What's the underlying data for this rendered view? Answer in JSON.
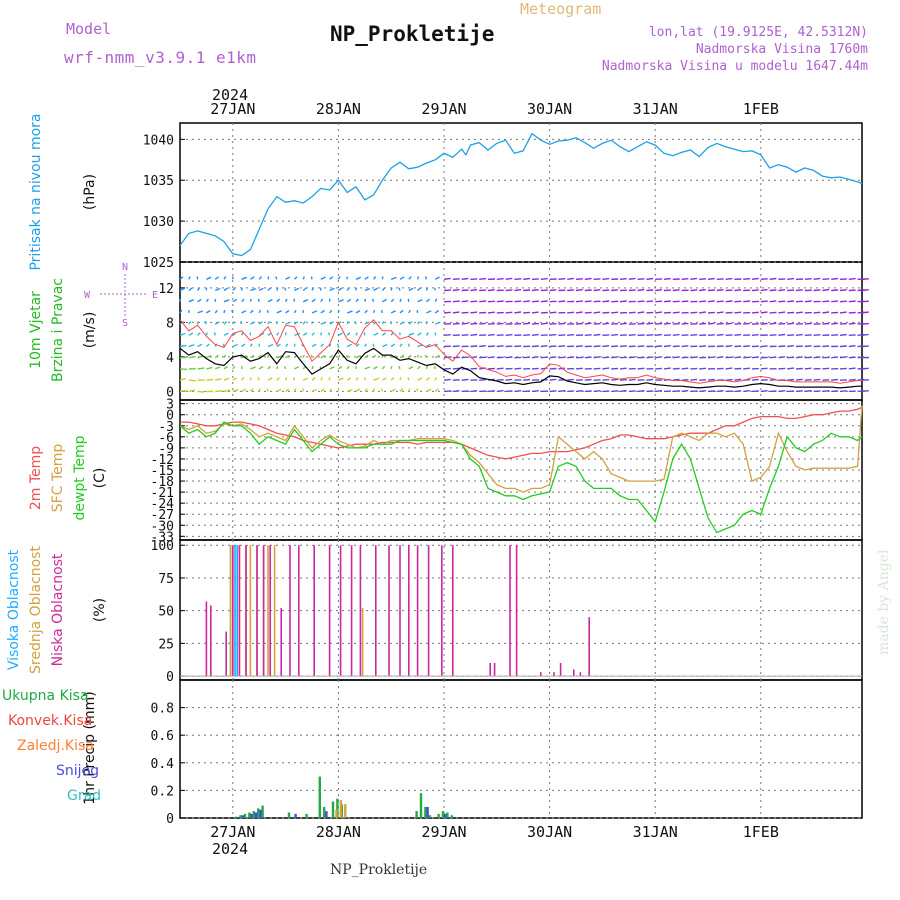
{
  "header": {
    "model_label": "Model",
    "model_name": "wrf-nmm_v3.9.1 e1km",
    "title": "NP_Prokletije",
    "meteogram_label": "Meteogram",
    "lonlat": "lon,lat (19.9125E, 42.5312N)",
    "elevation": "Nadmorska Visina 1760m",
    "model_elevation": "Nadmorska Visina u modelu 1647.44m"
  },
  "footer": {
    "station": "NP_Prokletije",
    "credit": "made by Angel"
  },
  "time_axis": {
    "labels": [
      "27JAN",
      "28JAN",
      "29JAN",
      "30JAN",
      "31JAN",
      "1FEB"
    ],
    "year": "2024",
    "range_hours": [
      -12,
      143
    ]
  },
  "colors": {
    "pressure": "#1ea0e8",
    "temp2m": "#f05050",
    "sfc": "#d4a040",
    "dewpt": "#22cc22",
    "high_cloud": "#22aaff",
    "mid_cloud": "#d4a040",
    "low_cloud": "#cc2a9c",
    "total_precip": "#22aa44",
    "conv_precip": "#ee4444",
    "frozen": "#ff8030",
    "snow": "#4a4ae0",
    "graupel": "#33c0c0"
  },
  "chart_data": [
    {
      "type": "line",
      "panel": "pressure",
      "ylabel": [
        "Pritisak na nivou mora",
        "(hPa)"
      ],
      "ylim": [
        1025,
        1042
      ],
      "yticks": [
        1025,
        1030,
        1035,
        1040
      ],
      "grid": true,
      "series": [
        {
          "x": [
            -12,
            -10,
            -8,
            -6,
            -4,
            -2,
            0,
            2,
            4,
            6,
            8,
            10,
            12,
            14,
            16,
            18,
            20,
            22,
            24,
            26,
            28,
            30,
            32,
            34,
            36,
            38,
            40,
            42,
            44,
            46,
            48,
            50,
            52,
            53,
            54,
            56,
            58,
            60,
            62,
            64,
            66,
            68,
            70,
            72,
            74,
            76,
            78,
            80,
            82,
            84,
            86,
            88,
            90,
            92,
            94,
            96,
            98,
            100,
            102,
            104,
            106,
            108,
            110,
            112,
            114,
            116,
            118,
            120,
            122,
            124,
            126,
            128,
            130,
            132,
            134,
            136,
            138,
            140,
            142,
            143
          ],
          "y": [
            1027.0,
            1028.5,
            1028.8,
            1028.5,
            1028.2,
            1027.5,
            1026.0,
            1025.8,
            1026.5,
            1029.0,
            1031.5,
            1033.0,
            1032.3,
            1032.5,
            1032.2,
            1033.0,
            1034.0,
            1033.8,
            1035.0,
            1033.5,
            1034.2,
            1032.6,
            1033.2,
            1035.0,
            1036.5,
            1037.2,
            1036.4,
            1036.6,
            1037.1,
            1037.5,
            1038.3,
            1037.8,
            1038.8,
            1038.1,
            1039.3,
            1039.6,
            1038.7,
            1039.5,
            1039.9,
            1038.3,
            1038.6,
            1040.7,
            1039.9,
            1039.4,
            1039.8,
            1039.9,
            1040.2,
            1039.6,
            1038.9,
            1039.5,
            1039.9,
            1039.1,
            1038.5,
            1039.1,
            1039.7,
            1039.3,
            1038.3,
            1038.0,
            1038.4,
            1038.7,
            1037.9,
            1039.0,
            1039.5,
            1039.1,
            1038.8,
            1038.5,
            1038.6,
            1038.1,
            1036.5,
            1036.9,
            1036.6,
            1036.0,
            1036.5,
            1036.2,
            1035.5,
            1035.3,
            1035.4,
            1035.1,
            1034.8,
            1034.6
          ]
        }
      ]
    },
    {
      "type": "line",
      "panel": "wind",
      "ylabel": [
        "10m Vjetar",
        "Brzina i Pravac",
        "(m/s)"
      ],
      "ylim": [
        -1,
        15
      ],
      "yticks": [
        0,
        4,
        8,
        12
      ],
      "compass": [
        "N",
        "E",
        "W",
        "S"
      ],
      "grid": true,
      "series": [
        {
          "name": "speed",
          "x": [
            -12,
            -10,
            -8,
            -6,
            -4,
            -2,
            0,
            2,
            4,
            6,
            8,
            10,
            12,
            14,
            16,
            18,
            20,
            22,
            24,
            26,
            28,
            30,
            32,
            34,
            36,
            38,
            40,
            42,
            44,
            46,
            48,
            50,
            52,
            54,
            56,
            58,
            60,
            62,
            64,
            66,
            68,
            70,
            72,
            74,
            76,
            78,
            80,
            82,
            84,
            86,
            88,
            90,
            92,
            94,
            96,
            98,
            100,
            102,
            104,
            106,
            108,
            110,
            112,
            114,
            116,
            118,
            120,
            122,
            124,
            126,
            128,
            130,
            132,
            134,
            136,
            138,
            140,
            142,
            143
          ],
          "y": [
            5.0,
            4.2,
            4.6,
            3.8,
            3.2,
            3.0,
            4.0,
            4.2,
            3.5,
            3.8,
            4.5,
            3.2,
            4.6,
            4.5,
            3.2,
            2.0,
            2.6,
            3.2,
            4.8,
            3.6,
            3.2,
            4.4,
            5.0,
            4.2,
            4.2,
            3.6,
            3.8,
            3.4,
            3.0,
            3.2,
            2.5,
            2.0,
            2.8,
            2.4,
            1.6,
            1.4,
            1.2,
            0.9,
            1.0,
            0.8,
            1.0,
            1.1,
            1.8,
            1.7,
            1.2,
            1.0,
            0.8,
            0.9,
            1.0,
            0.8,
            0.7,
            0.8,
            0.8,
            1.0,
            0.8,
            0.7,
            0.6,
            0.6,
            0.5,
            0.4,
            0.5,
            0.6,
            0.6,
            0.5,
            0.6,
            0.8,
            0.9,
            0.8,
            0.6,
            0.6,
            0.5,
            0.5,
            0.5,
            0.5,
            0.5,
            0.4,
            0.5,
            0.6,
            0.6
          ]
        }
      ]
    },
    {
      "type": "line",
      "panel": "temperature",
      "ylabel": [
        "2m Temp",
        "SFC Temp",
        "dewpt Temp",
        "(C)"
      ],
      "ylim": [
        -34,
        4
      ],
      "yticks": [
        3,
        0,
        -3,
        -6,
        -9,
        -12,
        -15,
        -18,
        -21,
        -24,
        -27,
        -30,
        -33
      ],
      "grid": true,
      "x": [
        -12,
        -10,
        -8,
        -6,
        -4,
        -2,
        0,
        2,
        4,
        6,
        8,
        10,
        12,
        14,
        16,
        18,
        20,
        22,
        24,
        26,
        28,
        30,
        32,
        34,
        36,
        38,
        40,
        42,
        44,
        46,
        48,
        50,
        52,
        54,
        56,
        58,
        60,
        62,
        64,
        66,
        68,
        70,
        72,
        74,
        76,
        78,
        80,
        82,
        84,
        86,
        88,
        90,
        92,
        94,
        96,
        98,
        100,
        102,
        104,
        106,
        108,
        110,
        112,
        114,
        116,
        118,
        120,
        122,
        124,
        126,
        128,
        130,
        132,
        134,
        136,
        138,
        140,
        142,
        143
      ],
      "series": [
        {
          "name": "2m Temp",
          "y": [
            -2,
            -2,
            -2.5,
            -3,
            -3,
            -2.5,
            -2,
            -2,
            -2.5,
            -3,
            -4,
            -5,
            -5.5,
            -6,
            -7,
            -7.5,
            -8,
            -8.5,
            -9,
            -8.5,
            -8,
            -8,
            -8,
            -7.5,
            -7.5,
            -7.5,
            -7.5,
            -8,
            -7.5,
            -7.5,
            -7.5,
            -7.5,
            -8,
            -9,
            -10,
            -11,
            -11.5,
            -12,
            -11.5,
            -11,
            -10.5,
            -10.5,
            -10,
            -10,
            -10,
            -9.5,
            -9,
            -8,
            -7,
            -6.5,
            -5.5,
            -5.5,
            -6,
            -6.5,
            -6.5,
            -6.5,
            -6,
            -5.5,
            -5,
            -5,
            -5,
            -4,
            -3,
            -3,
            -2,
            -1,
            -0.5,
            -0.5,
            -0.5,
            -1,
            -1,
            -0.5,
            0,
            0,
            0.5,
            1,
            1,
            1.5,
            2
          ]
        },
        {
          "name": "SFC Temp",
          "y": [
            -3,
            -4,
            -3,
            -5,
            -4.5,
            -2.5,
            -3,
            -2.5,
            -4,
            -6,
            -5,
            -6,
            -7,
            -3,
            -6,
            -9,
            -7,
            -5.5,
            -7,
            -8,
            -9,
            -8.5,
            -7,
            -8,
            -7,
            -7,
            -7,
            -6.5,
            -6.5,
            -6.5,
            -6.5,
            -7,
            -8,
            -11,
            -13,
            -16,
            -19,
            -20,
            -20,
            -21,
            -20,
            -20,
            -19,
            -6,
            -8,
            -10,
            -12,
            -10,
            -12,
            -16,
            -17,
            -18,
            -18,
            -18,
            -18,
            -17.5,
            -6,
            -5,
            -6,
            -7,
            -5,
            -5,
            -6,
            -5,
            -8,
            -18,
            -17,
            -14,
            -5,
            -10,
            -14,
            -15,
            -14.5,
            -14.5,
            -14.5,
            -14.5,
            -14.5,
            -14,
            2.5
          ]
        },
        {
          "name": "dewpt Temp",
          "y": [
            -3,
            -5,
            -4,
            -6,
            -5,
            -2,
            -3,
            -3,
            -5,
            -8,
            -6,
            -7,
            -8,
            -4,
            -7,
            -10,
            -8,
            -6,
            -8,
            -9,
            -9,
            -9,
            -8,
            -8,
            -8,
            -7,
            -7,
            -7,
            -7,
            -7,
            -7,
            -7.5,
            -8,
            -12,
            -14,
            -20,
            -21,
            -22,
            -22,
            -23,
            -22,
            -21.5,
            -21,
            -14,
            -13,
            -14,
            -18,
            -20,
            -20,
            -20,
            -22,
            -23,
            -23,
            -26,
            -29,
            -21,
            -12,
            -8,
            -12,
            -20,
            -28,
            -32,
            -31,
            -30,
            -27,
            -26,
            -27,
            -20,
            -14,
            -6,
            -9,
            -10,
            -8,
            -7,
            -5,
            -6,
            -6,
            -7,
            -6
          ]
        }
      ]
    },
    {
      "type": "bar",
      "panel": "clouds",
      "ylabel": [
        "Visoka Oblacnost",
        "Srednja Oblacnost",
        "Niska Oblacnost",
        "(%)"
      ],
      "ylim": [
        -3,
        104
      ],
      "yticks": [
        0,
        25,
        50,
        75,
        100
      ],
      "grid": true,
      "series": [
        {
          "name": "Visoka Oblacnost",
          "points": [
            [
              -0.5,
              100
            ],
            [
              0.5,
              100
            ],
            [
              1,
              100
            ]
          ]
        },
        {
          "name": "Srednja Oblacnost",
          "points": [
            [
              -0.5,
              100
            ],
            [
              0,
              100
            ],
            [
              1.5,
              100
            ],
            [
              3,
              100
            ],
            [
              4,
              100
            ],
            [
              5.5,
              100
            ],
            [
              7,
              100
            ],
            [
              8,
              100
            ],
            [
              9.5,
              100
            ],
            [
              29.5,
              52
            ]
          ]
        },
        {
          "name": "Niska Oblacnost",
          "points": [
            [
              -6,
              57
            ],
            [
              -5,
              54
            ],
            [
              -1.5,
              34
            ],
            [
              0,
              100
            ],
            [
              1.5,
              100
            ],
            [
              3,
              100
            ],
            [
              5.5,
              100
            ],
            [
              7,
              100
            ],
            [
              8.5,
              100
            ],
            [
              11,
              52
            ],
            [
              13,
              100
            ],
            [
              15,
              100
            ],
            [
              18.5,
              100
            ],
            [
              22,
              100
            ],
            [
              24.5,
              100
            ],
            [
              27,
              100
            ],
            [
              29,
              100
            ],
            [
              32.5,
              100
            ],
            [
              35.5,
              100
            ],
            [
              38,
              100
            ],
            [
              40,
              100
            ],
            [
              42,
              100
            ],
            [
              44.5,
              100
            ],
            [
              47.5,
              100
            ],
            [
              50,
              100
            ],
            [
              58.5,
              10
            ],
            [
              59.5,
              10
            ],
            [
              63,
              100
            ],
            [
              64.5,
              100
            ],
            [
              70,
              3
            ],
            [
              73,
              3
            ],
            [
              74.5,
              10
            ],
            [
              77.5,
              5
            ],
            [
              79,
              3
            ],
            [
              81,
              45
            ]
          ]
        }
      ]
    },
    {
      "type": "bar",
      "panel": "precipitation",
      "ylabel": [
        "1hr Precip (mm)"
      ],
      "ylim": [
        0,
        1.0
      ],
      "yticks": [
        0,
        0.2,
        0.4,
        0.6,
        0.8
      ],
      "legend": [
        "Ukupna Kisa",
        "Konvek.Kisa",
        "Zaledj.Kisa",
        "Snijeg",
        "Grad"
      ],
      "grid": true,
      "series": [
        {
          "name": "Ukupna Kisa",
          "points": [
            [
              1,
              0.01
            ],
            [
              2,
              0.02
            ],
            [
              3,
              0.03
            ],
            [
              4,
              0.04
            ],
            [
              5,
              0.05
            ],
            [
              6,
              0.07
            ],
            [
              7,
              0.09
            ],
            [
              13,
              0.04
            ],
            [
              17,
              0.03
            ],
            [
              20,
              0.3
            ],
            [
              21,
              0.08
            ],
            [
              23,
              0.12
            ],
            [
              24,
              0.14
            ],
            [
              25,
              0.1
            ],
            [
              42,
              0.05
            ],
            [
              43,
              0.18
            ],
            [
              44,
              0.08
            ],
            [
              45,
              0.02
            ],
            [
              47,
              0.03
            ],
            [
              48,
              0.05
            ],
            [
              49,
              0.04
            ],
            [
              50,
              0.02
            ]
          ]
        },
        {
          "name": "Snijeg",
          "points": [
            [
              2,
              0.02
            ],
            [
              4,
              0.03
            ],
            [
              5,
              0.04
            ],
            [
              6,
              0.06
            ],
            [
              14,
              0.03
            ],
            [
              21,
              0.05
            ],
            [
              44,
              0.08
            ],
            [
              48,
              0.03
            ]
          ]
        },
        {
          "name": "Zaledj.Kisa",
          "points": [
            [
              23,
              0.06
            ],
            [
              24,
              0.13
            ],
            [
              25,
              0.1
            ]
          ]
        }
      ]
    }
  ]
}
